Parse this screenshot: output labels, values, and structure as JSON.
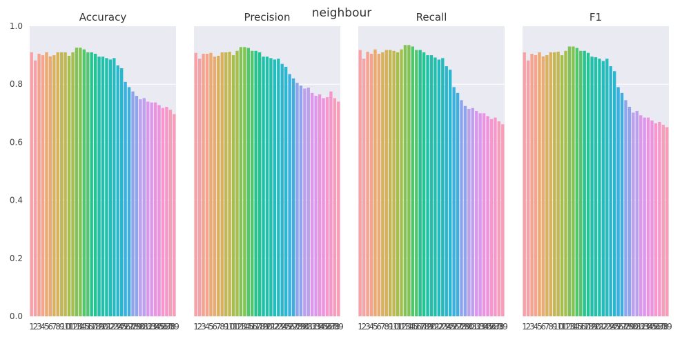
{
  "suptitle": "neighbour",
  "chart_data": [
    {
      "type": "bar",
      "title": "Accuracy",
      "categories": [
        "1",
        "2",
        "3",
        "4",
        "5",
        "6",
        "7",
        "8",
        "9",
        "10",
        "11",
        "12",
        "13",
        "14",
        "15",
        "16",
        "17",
        "18",
        "19",
        "20",
        "21",
        "22",
        "23",
        "24",
        "25",
        "26",
        "27",
        "28",
        "29",
        "30",
        "31",
        "32",
        "33",
        "34",
        "35",
        "36",
        "37",
        "38",
        "39"
      ],
      "values": [
        0.91,
        0.882,
        0.905,
        0.9,
        0.91,
        0.896,
        0.9,
        0.91,
        0.91,
        0.91,
        0.898,
        0.91,
        0.926,
        0.926,
        0.92,
        0.91,
        0.91,
        0.905,
        0.895,
        0.895,
        0.89,
        0.885,
        0.89,
        0.865,
        0.855,
        0.808,
        0.79,
        0.775,
        0.76,
        0.748,
        0.752,
        0.74,
        0.737,
        0.737,
        0.728,
        0.718,
        0.722,
        0.712,
        0.697
      ],
      "ylim": [
        0,
        1.0
      ],
      "yticks": [
        "0.0",
        "0.2",
        "0.4",
        "0.6",
        "0.8",
        "1.0"
      ],
      "xlabel": "",
      "ylabel": "",
      "grid": true
    },
    {
      "type": "bar",
      "title": "Precision",
      "categories": [
        "1",
        "2",
        "3",
        "4",
        "5",
        "6",
        "7",
        "8",
        "9",
        "10",
        "11",
        "12",
        "13",
        "14",
        "15",
        "16",
        "17",
        "18",
        "19",
        "20",
        "21",
        "22",
        "23",
        "24",
        "25",
        "26",
        "27",
        "28",
        "29",
        "30",
        "31",
        "32",
        "33",
        "34",
        "35",
        "36",
        "37",
        "38",
        "39"
      ],
      "values": [
        0.908,
        0.888,
        0.905,
        0.905,
        0.908,
        0.895,
        0.898,
        0.91,
        0.91,
        0.912,
        0.9,
        0.915,
        0.928,
        0.928,
        0.925,
        0.915,
        0.915,
        0.91,
        0.895,
        0.895,
        0.89,
        0.885,
        0.888,
        0.87,
        0.86,
        0.835,
        0.82,
        0.805,
        0.795,
        0.785,
        0.788,
        0.77,
        0.76,
        0.765,
        0.752,
        0.755,
        0.775,
        0.752,
        0.74
      ],
      "ylim": [
        0,
        1.0
      ],
      "yticks": [
        "0.0",
        "0.2",
        "0.4",
        "0.6",
        "0.8",
        "1.0"
      ],
      "xlabel": "",
      "ylabel": "",
      "grid": true
    },
    {
      "type": "bar",
      "title": "Recall",
      "categories": [
        "1",
        "2",
        "3",
        "4",
        "5",
        "6",
        "7",
        "8",
        "9",
        "10",
        "11",
        "12",
        "13",
        "14",
        "15",
        "16",
        "17",
        "18",
        "19",
        "20",
        "21",
        "22",
        "23",
        "24",
        "25",
        "26",
        "27",
        "28",
        "29",
        "30",
        "31",
        "32",
        "33",
        "34",
        "35",
        "36",
        "37",
        "38",
        "39"
      ],
      "values": [
        0.918,
        0.888,
        0.912,
        0.905,
        0.92,
        0.905,
        0.91,
        0.918,
        0.918,
        0.915,
        0.91,
        0.92,
        0.935,
        0.935,
        0.93,
        0.918,
        0.918,
        0.91,
        0.9,
        0.9,
        0.892,
        0.885,
        0.89,
        0.862,
        0.85,
        0.79,
        0.77,
        0.745,
        0.725,
        0.715,
        0.718,
        0.708,
        0.7,
        0.7,
        0.69,
        0.68,
        0.685,
        0.672,
        0.662
      ],
      "ylim": [
        0,
        1.0
      ],
      "yticks": [
        "0.0",
        "0.2",
        "0.4",
        "0.6",
        "0.8",
        "1.0"
      ],
      "xlabel": "",
      "ylabel": "",
      "grid": true
    },
    {
      "type": "bar",
      "title": "F1",
      "categories": [
        "1",
        "2",
        "3",
        "4",
        "5",
        "6",
        "7",
        "8",
        "9",
        "10",
        "11",
        "12",
        "13",
        "14",
        "15",
        "16",
        "17",
        "18",
        "19",
        "20",
        "21",
        "22",
        "23",
        "24",
        "25",
        "26",
        "27",
        "28",
        "29",
        "30",
        "31",
        "32",
        "33",
        "34",
        "35",
        "36",
        "37",
        "38",
        "39"
      ],
      "values": [
        0.91,
        0.882,
        0.905,
        0.9,
        0.91,
        0.896,
        0.9,
        0.91,
        0.91,
        0.912,
        0.9,
        0.915,
        0.93,
        0.93,
        0.925,
        0.915,
        0.915,
        0.908,
        0.895,
        0.893,
        0.888,
        0.88,
        0.888,
        0.862,
        0.845,
        0.79,
        0.77,
        0.745,
        0.722,
        0.702,
        0.708,
        0.693,
        0.685,
        0.685,
        0.675,
        0.665,
        0.67,
        0.66,
        0.652
      ],
      "ylim": [
        0,
        1.0
      ],
      "yticks": [
        "0.0",
        "0.2",
        "0.4",
        "0.6",
        "0.8",
        "1.0"
      ],
      "xlabel": "",
      "ylabel": "",
      "grid": true
    }
  ]
}
